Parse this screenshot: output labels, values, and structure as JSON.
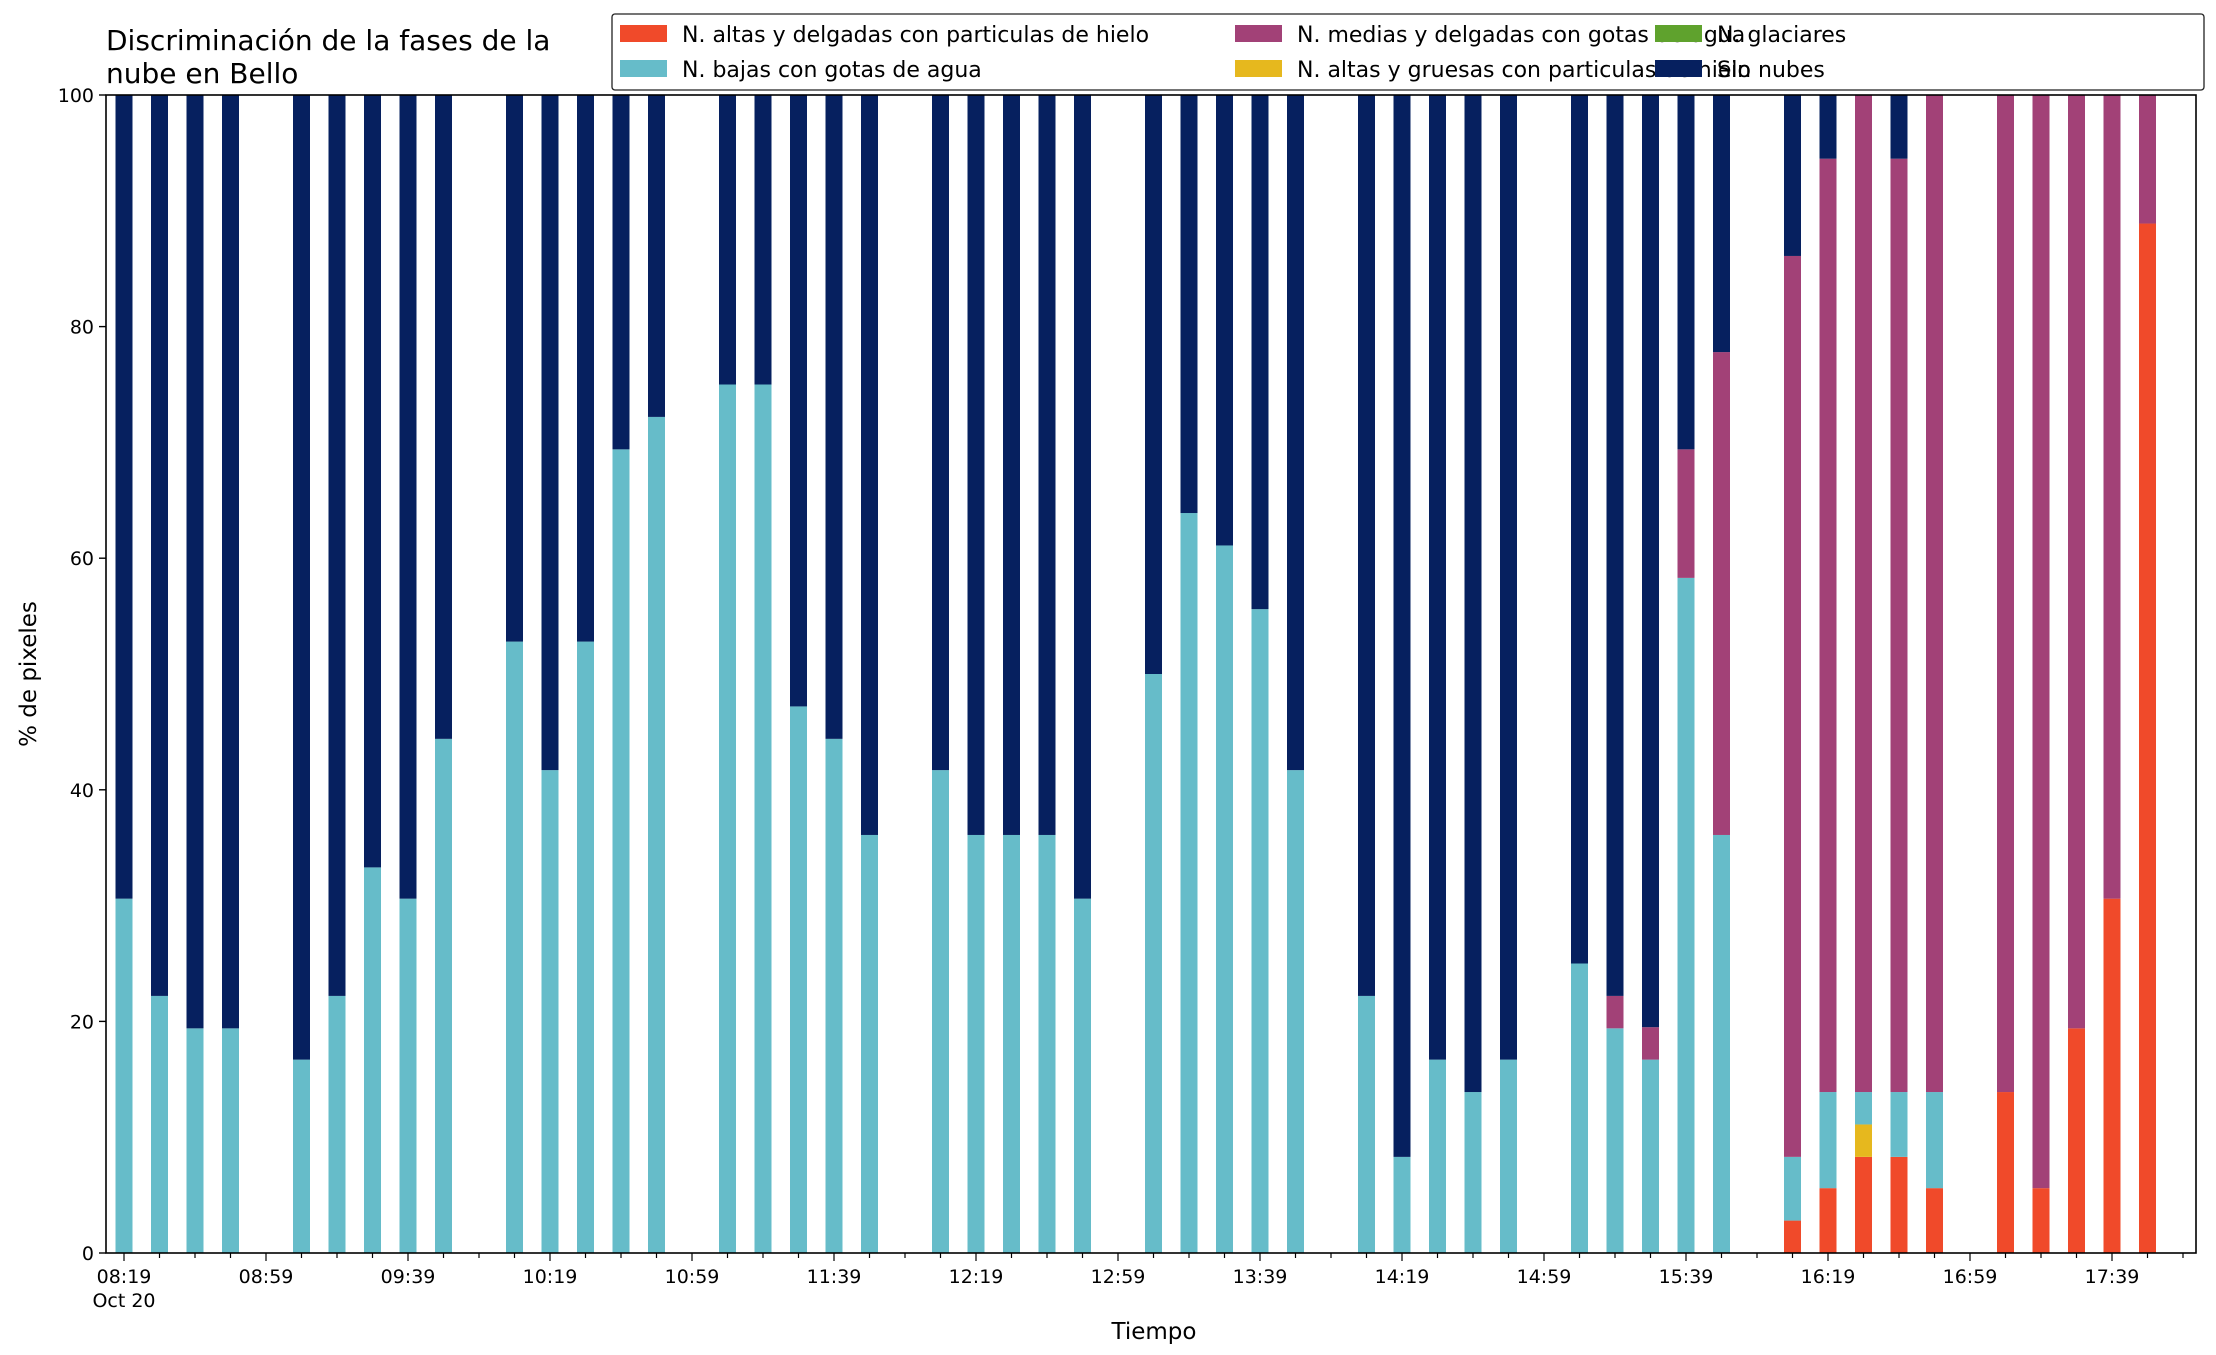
{
  "chart_data": {
    "type": "bar",
    "stacked": true,
    "title_lines": [
      "Discriminación de la fases de la",
      "nube en Bello"
    ],
    "xlabel": "Tiempo",
    "ylabel": "% de pixeles",
    "ylim": [
      0,
      100
    ],
    "yticks": [
      0,
      20,
      40,
      60,
      80,
      100
    ],
    "x_tick_labels": [
      {
        "slot": 0,
        "text": "08:19",
        "sub": "Oct 20"
      },
      {
        "slot": 4,
        "text": "08:59"
      },
      {
        "slot": 8,
        "text": "09:39"
      },
      {
        "slot": 12,
        "text": "10:19"
      },
      {
        "slot": 16,
        "text": "10:59"
      },
      {
        "slot": 20,
        "text": "11:39"
      },
      {
        "slot": 24,
        "text": "12:19"
      },
      {
        "slot": 28,
        "text": "12:59"
      },
      {
        "slot": 32,
        "text": "13:39"
      },
      {
        "slot": 36,
        "text": "14:19"
      },
      {
        "slot": 40,
        "text": "14:59"
      },
      {
        "slot": 44,
        "text": "15:39"
      },
      {
        "slot": 48,
        "text": "16:19"
      },
      {
        "slot": 52,
        "text": "16:59"
      },
      {
        "slot": 56,
        "text": "17:39"
      }
    ],
    "grid": false,
    "legend_position": "top-right",
    "series": [
      {
        "name": "N. altas y delgadas con particulas de hielo",
        "color": "#f04a2a"
      },
      {
        "name": "N. altas y gruesas con particulas de hielo",
        "color": "#e6b81e"
      },
      {
        "name": "N. glaciares",
        "color": "#5fa22d"
      },
      {
        "name": "N. bajas con gotas de agua",
        "color": "#66bcc9"
      },
      {
        "name": "N. medias y delgadas con gotas de agua",
        "color": "#a24177"
      },
      {
        "name": "Sin nubes",
        "color": "#06205f"
      }
    ],
    "legend_order": [
      0,
      3,
      4,
      1,
      2,
      5
    ],
    "bars": [
      {
        "slot": 0,
        "values": [
          0,
          0,
          0,
          30.6,
          0,
          69.4
        ]
      },
      {
        "slot": 1,
        "values": [
          0,
          0,
          0,
          22.2,
          0,
          77.8
        ]
      },
      {
        "slot": 2,
        "values": [
          0,
          0,
          0,
          19.4,
          0,
          80.6
        ]
      },
      {
        "slot": 3,
        "values": [
          0,
          0,
          0,
          19.4,
          0,
          80.6
        ]
      },
      {
        "slot": 5,
        "values": [
          0,
          0,
          0,
          16.7,
          0,
          83.3
        ]
      },
      {
        "slot": 6,
        "values": [
          0,
          0,
          0,
          22.2,
          0,
          77.8
        ]
      },
      {
        "slot": 7,
        "values": [
          0,
          0,
          0,
          33.3,
          0,
          66.7
        ]
      },
      {
        "slot": 8,
        "values": [
          0,
          0,
          0,
          30.6,
          0,
          69.4
        ]
      },
      {
        "slot": 9,
        "values": [
          0,
          0,
          0,
          44.4,
          0,
          55.6
        ]
      },
      {
        "slot": 11,
        "values": [
          0,
          0,
          0,
          52.8,
          0,
          47.2
        ]
      },
      {
        "slot": 12,
        "values": [
          0,
          0,
          0,
          41.7,
          0,
          58.3
        ]
      },
      {
        "slot": 13,
        "values": [
          0,
          0,
          0,
          52.8,
          0,
          47.2
        ]
      },
      {
        "slot": 14,
        "values": [
          0,
          0,
          0,
          69.4,
          0,
          30.6
        ]
      },
      {
        "slot": 15,
        "values": [
          0,
          0,
          0,
          72.2,
          0,
          27.8
        ]
      },
      {
        "slot": 17,
        "values": [
          0,
          0,
          0,
          75.0,
          0,
          25.0
        ]
      },
      {
        "slot": 18,
        "values": [
          0,
          0,
          0,
          75.0,
          0,
          25.0
        ]
      },
      {
        "slot": 19,
        "values": [
          0,
          0,
          0,
          47.2,
          0,
          52.8
        ]
      },
      {
        "slot": 20,
        "values": [
          0,
          0,
          0,
          44.4,
          0,
          55.6
        ]
      },
      {
        "slot": 21,
        "values": [
          0,
          0,
          0,
          36.1,
          0,
          63.9
        ]
      },
      {
        "slot": 23,
        "values": [
          0,
          0,
          0,
          41.7,
          0,
          58.3
        ]
      },
      {
        "slot": 24,
        "values": [
          0,
          0,
          0,
          36.1,
          0,
          63.9
        ]
      },
      {
        "slot": 25,
        "values": [
          0,
          0,
          0,
          36.1,
          0,
          63.9
        ]
      },
      {
        "slot": 26,
        "values": [
          0,
          0,
          0,
          36.1,
          0,
          63.9
        ]
      },
      {
        "slot": 27,
        "values": [
          0,
          0,
          0,
          30.6,
          0,
          69.4
        ]
      },
      {
        "slot": 29,
        "values": [
          0,
          0,
          0,
          50.0,
          0,
          50.0
        ]
      },
      {
        "slot": 30,
        "values": [
          0,
          0,
          0,
          63.9,
          0,
          36.1
        ]
      },
      {
        "slot": 31,
        "values": [
          0,
          0,
          0,
          61.1,
          0,
          38.9
        ]
      },
      {
        "slot": 32,
        "values": [
          0,
          0,
          0,
          55.6,
          0,
          44.4
        ]
      },
      {
        "slot": 33,
        "values": [
          0,
          0,
          0,
          41.7,
          0,
          58.3
        ]
      },
      {
        "slot": 35,
        "values": [
          0,
          0,
          0,
          22.2,
          0,
          77.8
        ]
      },
      {
        "slot": 36,
        "values": [
          0,
          0,
          0,
          8.3,
          0,
          91.7
        ]
      },
      {
        "slot": 37,
        "values": [
          0,
          0,
          0,
          16.7,
          0,
          83.3
        ]
      },
      {
        "slot": 38,
        "values": [
          0,
          0,
          0,
          13.9,
          0,
          86.1
        ]
      },
      {
        "slot": 39,
        "values": [
          0,
          0,
          0,
          16.7,
          0,
          83.3
        ]
      },
      {
        "slot": 41,
        "values": [
          0,
          0,
          0,
          25.0,
          0,
          75.0
        ]
      },
      {
        "slot": 42,
        "values": [
          0,
          0,
          0,
          19.4,
          2.8,
          77.8
        ]
      },
      {
        "slot": 43,
        "values": [
          0,
          0,
          0,
          16.7,
          2.8,
          80.5
        ]
      },
      {
        "slot": 44,
        "values": [
          0,
          0,
          0,
          58.3,
          11.1,
          30.6
        ]
      },
      {
        "slot": 45,
        "values": [
          0,
          0,
          0,
          36.1,
          41.7,
          22.2
        ]
      },
      {
        "slot": 47,
        "values": [
          2.8,
          0,
          0,
          5.5,
          77.8,
          13.9
        ]
      },
      {
        "slot": 48,
        "values": [
          5.6,
          0,
          0,
          8.3,
          80.6,
          5.5
        ]
      },
      {
        "slot": 49,
        "values": [
          8.3,
          2.8,
          0,
          2.8,
          86.1,
          0
        ]
      },
      {
        "slot": 50,
        "values": [
          8.3,
          0,
          0,
          5.6,
          80.6,
          5.5
        ]
      },
      {
        "slot": 51,
        "values": [
          5.6,
          0,
          0,
          8.3,
          86.1,
          0
        ]
      },
      {
        "slot": 53,
        "values": [
          13.9,
          0,
          0,
          0,
          86.1,
          0
        ]
      },
      {
        "slot": 54,
        "values": [
          5.6,
          0,
          0,
          0,
          94.4,
          0
        ]
      },
      {
        "slot": 55,
        "values": [
          19.4,
          0,
          0,
          0,
          80.6,
          0
        ]
      },
      {
        "slot": 56,
        "values": [
          30.6,
          0,
          0,
          0,
          69.4,
          0
        ]
      },
      {
        "slot": 57,
        "values": [
          88.9,
          0,
          0,
          0,
          11.1,
          0
        ]
      }
    ]
  }
}
